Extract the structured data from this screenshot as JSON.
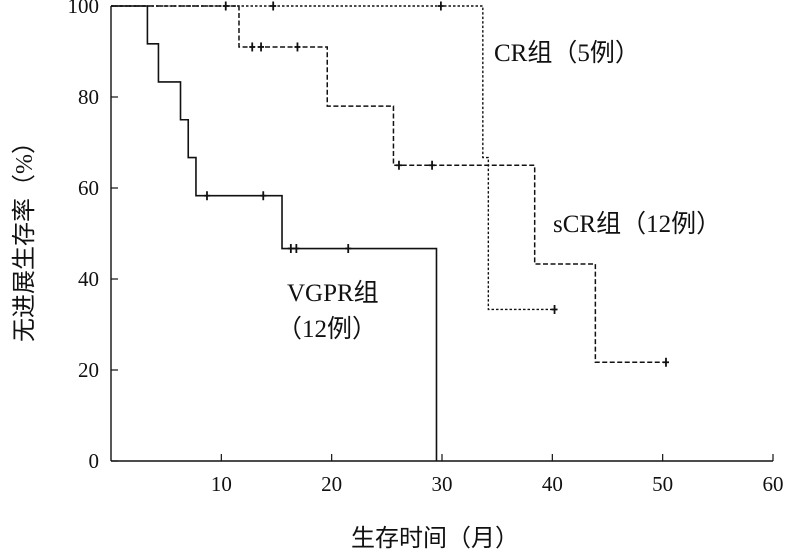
{
  "chart_data": {
    "type": "line",
    "title": "",
    "xlabel": "生存时间（月）",
    "ylabel": "无进展生存率（%）",
    "xlim": [
      0,
      60
    ],
    "ylim": [
      0,
      100
    ],
    "x_ticks": [
      10,
      20,
      30,
      40,
      50,
      60
    ],
    "y_ticks": [
      0,
      20,
      40,
      60,
      80,
      100
    ],
    "grid": false,
    "series": [
      {
        "label_line1": "VGPR组",
        "label_line2": "（12例）",
        "line_style": "solid",
        "steps": [
          [
            0,
            100
          ],
          [
            3.3,
            91.7
          ],
          [
            4.3,
            83.3
          ],
          [
            6.3,
            75.0
          ],
          [
            7.0,
            66.7
          ],
          [
            7.7,
            58.3
          ],
          [
            15.5,
            46.7
          ],
          [
            29.5,
            0
          ]
        ],
        "censored": [
          [
            8.7,
            58.3
          ],
          [
            13.8,
            58.3
          ],
          [
            16.3,
            46.7
          ],
          [
            16.8,
            46.7
          ],
          [
            21.5,
            46.7
          ]
        ],
        "end_x": 29.5
      },
      {
        "label_line1": "sCR组（12例）",
        "line_style": "dashed",
        "steps": [
          [
            0,
            100
          ],
          [
            11.6,
            91.0
          ],
          [
            19.6,
            78.0
          ],
          [
            25.6,
            65.0
          ],
          [
            38.4,
            43.3
          ],
          [
            43.9,
            21.7
          ]
        ],
        "censored": [
          [
            12.8,
            91.0
          ],
          [
            13.6,
            91.0
          ],
          [
            16.9,
            91.0
          ],
          [
            26.1,
            65.0
          ],
          [
            29.1,
            65.0
          ],
          [
            50.3,
            21.7
          ]
        ],
        "end_x": 50.3
      },
      {
        "label_line1": "CR组（5例）",
        "line_style": "dotted",
        "steps": [
          [
            0,
            100
          ],
          [
            33.7,
            66.7
          ],
          [
            34.2,
            33.3
          ]
        ],
        "censored": [
          [
            10.4,
            100
          ],
          [
            14.7,
            100
          ],
          [
            29.9,
            100
          ],
          [
            40.2,
            33.3
          ]
        ],
        "end_x": 40.2
      }
    ]
  }
}
